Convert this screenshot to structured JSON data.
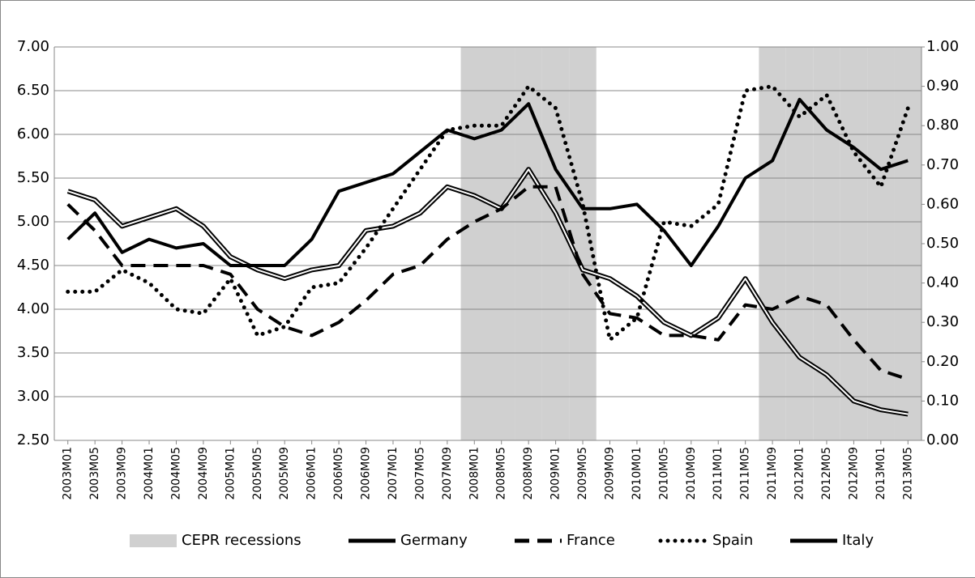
{
  "chart_data": {
    "type": "line",
    "categories": [
      "2003M01",
      "2003M05",
      "2003M09",
      "2004M01",
      "2004M05",
      "2004M09",
      "2005M01",
      "2005M05",
      "2005M09",
      "2006M01",
      "2006M05",
      "2006M09",
      "2007M01",
      "2007M05",
      "2007M09",
      "2008M01",
      "2008M05",
      "2008M09",
      "2009M01",
      "2009M05",
      "2009M09",
      "2010M01",
      "2010M05",
      "2010M09",
      "2011M01",
      "2011M05",
      "2011M09",
      "2012M01",
      "2012M05",
      "2012M09",
      "2013M01",
      "2013M05"
    ],
    "ylim": [
      2.5,
      7
    ],
    "yticks": [
      {
        "value": 2.5,
        "label": "2.50"
      },
      {
        "value": 3,
        "label": "3.00"
      },
      {
        "value": 3.5,
        "label": "3.50"
      },
      {
        "value": 4,
        "label": "4.00"
      },
      {
        "value": 4.5,
        "label": "4.50"
      },
      {
        "value": 5,
        "label": "5.00"
      },
      {
        "value": 5.5,
        "label": "5.50"
      },
      {
        "value": 6,
        "label": "6.00"
      },
      {
        "value": 6.5,
        "label": "6.50"
      },
      {
        "value": 7,
        "label": "7.00"
      }
    ],
    "y2lim": [
      0,
      1
    ],
    "y2ticks": [
      {
        "value": 0,
        "label": "0.00"
      },
      {
        "value": 0.1,
        "label": "0.10"
      },
      {
        "value": 0.2,
        "label": "0.20"
      },
      {
        "value": 0.3,
        "label": "0.30"
      },
      {
        "value": 0.4,
        "label": "0.40"
      },
      {
        "value": 0.5,
        "label": "0.50"
      },
      {
        "value": 0.6,
        "label": "0.60"
      },
      {
        "value": 0.7,
        "label": "0.70"
      },
      {
        "value": 0.8,
        "label": "0.80"
      },
      {
        "value": 0.9,
        "label": "0.90"
      },
      {
        "value": 1,
        "label": "1.00"
      }
    ],
    "grid": true,
    "legend": "bottom",
    "series": [
      {
        "name": "CEPR recessions",
        "type": "bar",
        "axis": "y2",
        "color": "#d0d0d0",
        "values": [
          0,
          0,
          0,
          0,
          0,
          0,
          0,
          0,
          0,
          0,
          0,
          0,
          0,
          0,
          0,
          1,
          1,
          1,
          1,
          1,
          0,
          0,
          0,
          0,
          0,
          0,
          1,
          1,
          1,
          1,
          1,
          1
        ]
      },
      {
        "name": "Germany",
        "style": "double",
        "color": "#000000",
        "values": [
          5.35,
          5.25,
          4.95,
          5.05,
          5.15,
          4.95,
          4.6,
          4.45,
          4.35,
          4.45,
          4.5,
          4.9,
          4.95,
          5.1,
          5.4,
          5.3,
          5.15,
          5.6,
          5.1,
          4.45,
          4.35,
          4.15,
          3.85,
          3.7,
          3.9,
          4.35,
          3.85,
          3.45,
          3.25,
          2.95,
          2.85,
          2.8
        ]
      },
      {
        "name": "France",
        "style": "dashed",
        "color": "#000000",
        "values": [
          5.2,
          4.9,
          4.5,
          4.5,
          4.5,
          4.5,
          4.4,
          4.0,
          3.8,
          3.7,
          3.85,
          4.1,
          4.4,
          4.5,
          4.8,
          5.0,
          5.15,
          5.4,
          5.4,
          4.4,
          3.95,
          3.9,
          3.7,
          3.7,
          3.65,
          4.05,
          4.0,
          4.15,
          4.05,
          3.65,
          3.3,
          3.2
        ]
      },
      {
        "name": "Spain",
        "style": "dotted",
        "color": "#000000",
        "values": [
          4.2,
          4.2,
          4.45,
          4.3,
          4.0,
          3.95,
          4.35,
          3.7,
          3.8,
          4.25,
          4.3,
          4.7,
          5.15,
          5.6,
          6.05,
          6.1,
          6.1,
          6.55,
          6.3,
          5.2,
          3.65,
          3.9,
          5.0,
          4.95,
          5.2,
          6.5,
          6.55,
          6.2,
          6.45,
          5.8,
          5.4,
          6.3
        ]
      },
      {
        "name": "Italy",
        "style": "solid",
        "color": "#000000",
        "values": [
          4.8,
          5.1,
          4.65,
          4.8,
          4.7,
          4.75,
          4.5,
          4.5,
          4.5,
          4.8,
          5.35,
          5.45,
          5.55,
          5.8,
          6.05,
          5.95,
          6.05,
          6.35,
          5.6,
          5.15,
          5.15,
          5.2,
          4.9,
          4.5,
          4.95,
          5.5,
          5.7,
          6.4,
          6.05,
          5.85,
          5.6,
          5.7
        ]
      }
    ]
  }
}
